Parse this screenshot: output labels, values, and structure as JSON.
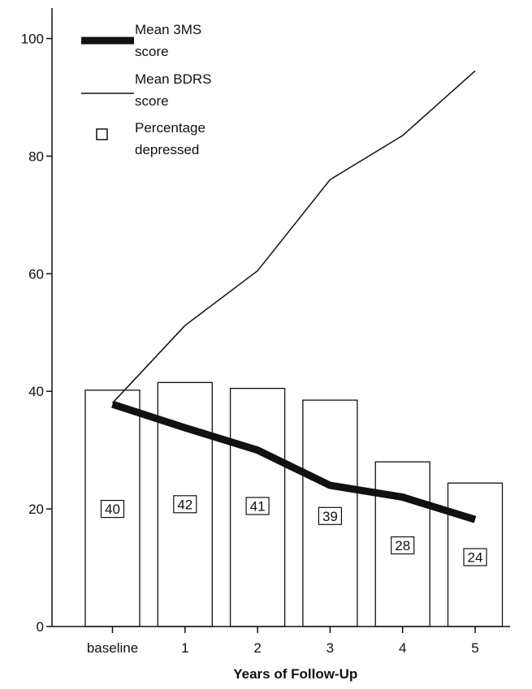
{
  "chart_data": {
    "type": "bar",
    "xlabel": "Years of Follow-Up",
    "ylabel": "",
    "title": "",
    "ylim": [
      0,
      100
    ],
    "yticks": [
      0,
      20,
      40,
      60,
      80,
      100
    ],
    "categories": [
      "baseline",
      "1",
      "2",
      "3",
      "4",
      "5"
    ],
    "bars": {
      "name": "Percentage depressed",
      "values": [
        40.2,
        41.5,
        40.5,
        38.5,
        28,
        24.4
      ],
      "labels": [
        "40",
        "42",
        "41",
        "39",
        "28",
        "24"
      ],
      "label_values": [
        20,
        20.8,
        20.5,
        18.8,
        13.8,
        11.8
      ]
    },
    "lines": [
      {
        "name": "Mean 3MS score",
        "values": [
          37.8,
          33.8,
          30,
          24,
          22,
          18.2
        ],
        "color": "#111111",
        "width": "thick"
      },
      {
        "name": "Mean BDRS score",
        "values": [
          38,
          51.2,
          60.5,
          76,
          83.5,
          94.5
        ],
        "color": "#111111",
        "width": "thin"
      }
    ],
    "legend": {
      "placement": "top-left",
      "items": [
        {
          "symbol": "thick-line",
          "line1": "Mean 3MS",
          "line2": "score"
        },
        {
          "symbol": "thin-line",
          "line1": "Mean BDRS",
          "line2": "score"
        },
        {
          "symbol": "square",
          "line1": "Percentage",
          "line2": "depressed"
        }
      ]
    }
  }
}
